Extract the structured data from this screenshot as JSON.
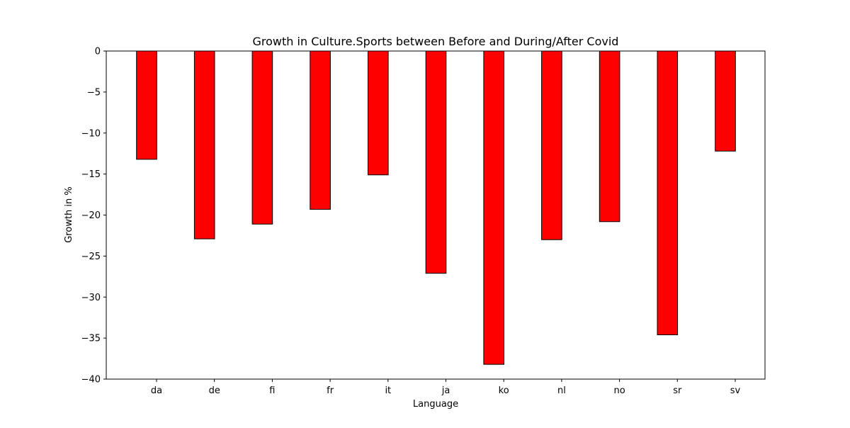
{
  "chart_data": {
    "type": "bar",
    "title": "Growth in Culture.Sports between Before and During/After Covid",
    "xlabel": "Language",
    "ylabel": "Growth in %",
    "categories": [
      "da",
      "de",
      "fi",
      "fr",
      "it",
      "ja",
      "ko",
      "nl",
      "no",
      "sr",
      "sv"
    ],
    "values": [
      -13.2,
      -22.9,
      -21.1,
      -19.3,
      -15.1,
      -27.1,
      -38.2,
      -23.0,
      -20.8,
      -34.6,
      -12.2
    ],
    "ylim": [
      -40,
      0
    ],
    "yticks": [
      0,
      -5,
      -10,
      -15,
      -20,
      -25,
      -30,
      -35,
      -40
    ],
    "ytick_labels": [
      "0",
      "−5",
      "−10",
      "−15",
      "−20",
      "−25",
      "−30",
      "−35",
      "−40"
    ],
    "grid": false,
    "legend": "none",
    "colors": {
      "bar_fill": "#ff0000",
      "bar_edge": "#000000",
      "axes": "#000000",
      "background": "#ffffff"
    }
  }
}
